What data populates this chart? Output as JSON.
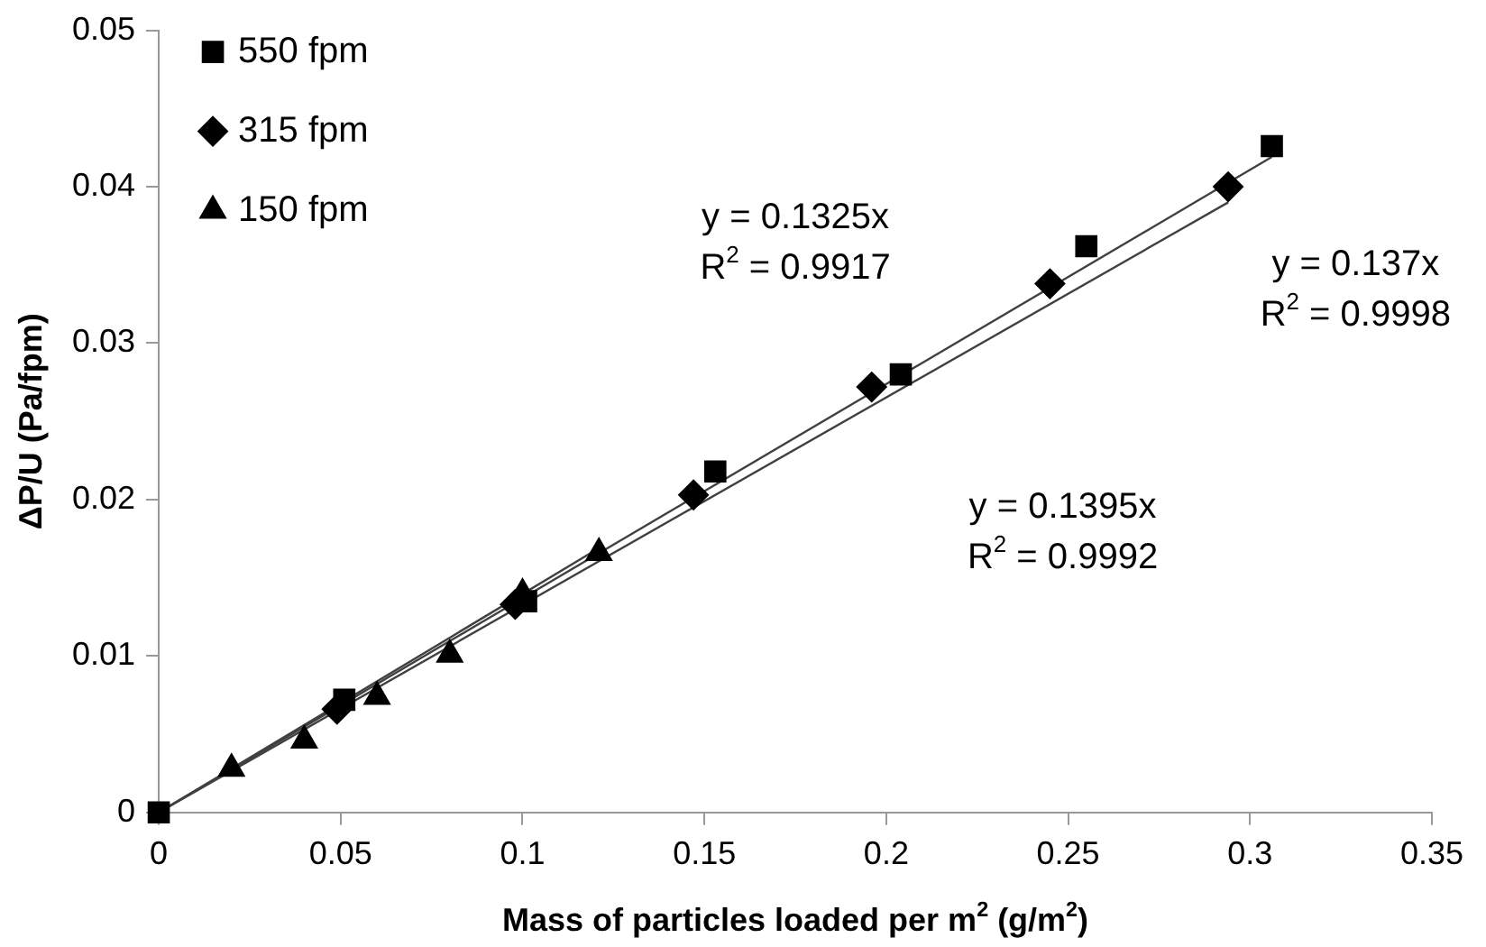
{
  "chart_data": {
    "type": "scatter",
    "xlabel": "Mass of particles loaded per m$^{2}$ (g/m$^{2}$)",
    "ylabel": "ΔP/U (Pa/fpm)",
    "xlim": [
      0,
      0.35
    ],
    "xticks": [
      0,
      0.05,
      0.1,
      0.15,
      0.2,
      0.25,
      0.3,
      0.35
    ],
    "ylim": [
      0,
      0.05
    ],
    "yticks": [
      0,
      0.01,
      0.02,
      0.03,
      0.04,
      0.05
    ],
    "grid": false,
    "legend": "top left",
    "series": [
      {
        "name": "550 fpm",
        "color": "#000000",
        "marker": "square",
        "x": [
          0,
          0.051,
          0.101,
          0.153,
          0.204,
          0.255,
          0.306
        ],
        "values": [
          0,
          0.0072,
          0.0135,
          0.0218,
          0.028,
          0.0362,
          0.0426
        ]
      },
      {
        "name": "315 fpm",
        "color": "#000000",
        "marker": "diamond",
        "x": [
          0.049,
          0.098,
          0.147,
          0.196,
          0.245,
          0.294
        ],
        "values": [
          0.0066,
          0.0133,
          0.0203,
          0.0272,
          0.0338,
          0.04
        ]
      },
      {
        "name": "150 fpm",
        "color": "#000000",
        "marker": "triangle",
        "x": [
          0.02,
          0.04,
          0.06,
          0.08,
          0.1,
          0.121
        ],
        "values": [
          0.0028,
          0.0046,
          0.0074,
          0.0101,
          0.014,
          0.0166
        ]
      },
      {
        "type": "line",
        "color": "#404040",
        "marker": "none",
        "x": [
          0,
          0.306
        ],
        "values": [
          0,
          0.0419
        ]
      },
      {
        "type": "line",
        "color": "#404040",
        "marker": "none",
        "x": [
          0,
          0.294
        ],
        "values": [
          0,
          0.039
        ]
      },
      {
        "type": "line",
        "color": "#404040",
        "marker": "none",
        "x": [
          0,
          0.121
        ],
        "values": [
          0,
          0.0169
        ]
      }
    ],
    "annotations": [
      "y = 0.1325x\nR$^{2}$ = 0.9917",
      "y = 0.1395x\nR$^{2}$ = 0.9992",
      "y = 0.137x\nR$^{2}$ = 0.9998"
    ]
  }
}
